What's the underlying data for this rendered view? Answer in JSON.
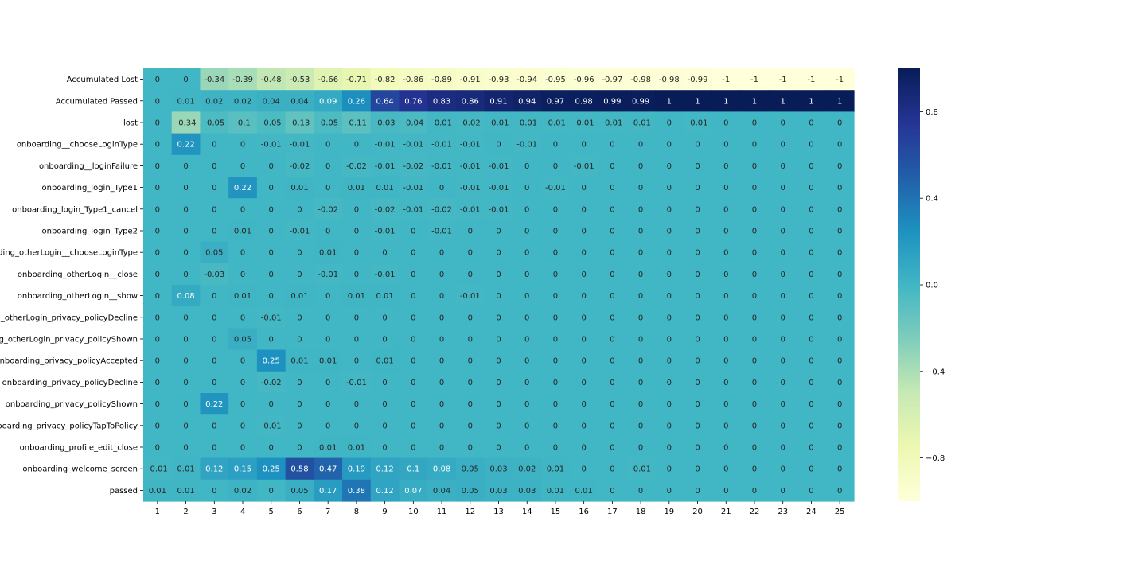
{
  "chart_data": {
    "type": "heatmap",
    "title": "",
    "xlabel": "",
    "ylabel": "",
    "x_categories": [
      "1",
      "2",
      "3",
      "4",
      "5",
      "6",
      "7",
      "8",
      "9",
      "10",
      "11",
      "12",
      "13",
      "14",
      "15",
      "16",
      "17",
      "18",
      "19",
      "20",
      "21",
      "22",
      "23",
      "24",
      "25"
    ],
    "y_categories": [
      "Accumulated Lost",
      "Accumulated Passed",
      "lost",
      "onboarding__chooseLoginType",
      "onboarding__loginFailure",
      "onboarding_login_Type1",
      "onboarding_login_Type1_cancel",
      "onboarding_login_Type2",
      "onboarding_otherLogin__chooseLoginType",
      "onboarding_otherLogin__close",
      "onboarding_otherLogin__show",
      "onboarding_otherLogin_privacy_policyDecline",
      "onboarding_otherLogin_privacy_policyShown",
      "onboarding_privacy_policyAccepted",
      "onboarding_privacy_policyDecline",
      "onboarding_privacy_policyShown",
      "onboarding_privacy_policyTapToPolicy",
      "onboarding_profile_edit_close",
      "onboarding_welcome_screen",
      "passed"
    ],
    "values": [
      [
        0,
        0,
        -0.34,
        -0.39,
        -0.48,
        -0.53,
        -0.66,
        -0.71,
        -0.82,
        -0.86,
        -0.89,
        -0.91,
        -0.93,
        -0.94,
        -0.95,
        -0.96,
        -0.97,
        -0.98,
        -0.98,
        -0.99,
        -1,
        -1,
        -1,
        -1,
        -1
      ],
      [
        0,
        0.01,
        0.02,
        0.02,
        0.04,
        0.04,
        0.09,
        0.26,
        0.64,
        0.76,
        0.83,
        0.86,
        0.91,
        0.94,
        0.97,
        0.98,
        0.99,
        0.99,
        1,
        1,
        1,
        1,
        1,
        1,
        1
      ],
      [
        0,
        -0.34,
        -0.05,
        -0.1,
        -0.05,
        -0.13,
        -0.05,
        -0.11,
        -0.03,
        -0.04,
        -0.01,
        -0.02,
        -0.01,
        -0.01,
        -0.01,
        -0.01,
        -0.01,
        -0.01,
        0,
        -0.01,
        0,
        0,
        0,
        0,
        0
      ],
      [
        0,
        0.22,
        0,
        0,
        -0.01,
        -0.01,
        0,
        0,
        -0.01,
        -0.01,
        -0.01,
        -0.01,
        0,
        -0.01,
        0,
        0,
        0,
        0,
        0,
        0,
        0,
        0,
        0,
        0,
        0
      ],
      [
        0,
        0,
        0,
        0,
        0,
        -0.02,
        0,
        -0.02,
        -0.01,
        -0.02,
        -0.01,
        -0.01,
        -0.01,
        0,
        0,
        -0.01,
        0,
        0,
        0,
        0,
        0,
        0,
        0,
        0,
        0
      ],
      [
        0,
        0,
        0,
        0.22,
        0,
        0.01,
        0,
        0.01,
        0.01,
        -0.01,
        0,
        -0.01,
        -0.01,
        0,
        -0.01,
        0,
        0,
        0,
        0,
        0,
        0,
        0,
        0,
        0,
        0
      ],
      [
        0,
        0,
        0,
        0,
        0,
        0,
        -0.02,
        0,
        -0.02,
        -0.01,
        -0.02,
        -0.01,
        -0.01,
        0,
        0,
        0,
        0,
        0,
        0,
        0,
        0,
        0,
        0,
        0,
        0
      ],
      [
        0,
        0,
        0,
        0.01,
        0,
        -0.01,
        0,
        0,
        -0.01,
        0,
        -0.01,
        0,
        0,
        0,
        0,
        0,
        0,
        0,
        0,
        0,
        0,
        0,
        0,
        0,
        0
      ],
      [
        0,
        0,
        0.05,
        0,
        0,
        0,
        0.01,
        0,
        0,
        0,
        0,
        0,
        0,
        0,
        0,
        0,
        0,
        0,
        0,
        0,
        0,
        0,
        0,
        0,
        0
      ],
      [
        0,
        0,
        -0.03,
        0,
        0,
        0,
        -0.01,
        0,
        -0.01,
        0,
        0,
        0,
        0,
        0,
        0,
        0,
        0,
        0,
        0,
        0,
        0,
        0,
        0,
        0,
        0
      ],
      [
        0,
        0.08,
        0,
        0.01,
        0,
        0.01,
        0,
        0.01,
        0.01,
        0,
        0,
        -0.01,
        0,
        0,
        0,
        0,
        0,
        0,
        0,
        0,
        0,
        0,
        0,
        0,
        0
      ],
      [
        0,
        0,
        0,
        0,
        -0.01,
        0,
        0,
        0,
        0,
        0,
        0,
        0,
        0,
        0,
        0,
        0,
        0,
        0,
        0,
        0,
        0,
        0,
        0,
        0,
        0
      ],
      [
        0,
        0,
        0,
        0.05,
        0,
        0,
        0,
        0,
        0,
        0,
        0,
        0,
        0,
        0,
        0,
        0,
        0,
        0,
        0,
        0,
        0,
        0,
        0,
        0,
        0
      ],
      [
        0,
        0,
        0,
        0,
        0.25,
        0.01,
        0.01,
        0,
        0.01,
        0,
        0,
        0,
        0,
        0,
        0,
        0,
        0,
        0,
        0,
        0,
        0,
        0,
        0,
        0,
        0
      ],
      [
        0,
        0,
        0,
        0,
        -0.02,
        0,
        0,
        -0.01,
        0,
        0,
        0,
        0,
        0,
        0,
        0,
        0,
        0,
        0,
        0,
        0,
        0,
        0,
        0,
        0,
        0
      ],
      [
        0,
        0,
        0.22,
        0,
        0,
        0,
        0,
        0,
        0,
        0,
        0,
        0,
        0,
        0,
        0,
        0,
        0,
        0,
        0,
        0,
        0,
        0,
        0,
        0,
        0
      ],
      [
        0,
        0,
        0,
        0,
        -0.01,
        0,
        0,
        0,
        0,
        0,
        0,
        0,
        0,
        0,
        0,
        0,
        0,
        0,
        0,
        0,
        0,
        0,
        0,
        0,
        0
      ],
      [
        0,
        0,
        0,
        0,
        0,
        0,
        0.01,
        0.01,
        0,
        0,
        0,
        0,
        0,
        0,
        0,
        0,
        0,
        0,
        0,
        0,
        0,
        0,
        0,
        0,
        0
      ],
      [
        -0.01,
        0.01,
        0.12,
        0.15,
        0.25,
        0.58,
        0.47,
        0.19,
        0.12,
        0.1,
        0.08,
        0.05,
        0.03,
        0.02,
        0.01,
        0,
        0,
        -0.01,
        0,
        0,
        0,
        0,
        0,
        0,
        0
      ],
      [
        0.01,
        0.01,
        0,
        0.02,
        0,
        0.05,
        0.17,
        0.38,
        0.12,
        0.07,
        0.04,
        0.05,
        0.03,
        0.03,
        0.01,
        0.01,
        0,
        0,
        0,
        0,
        0,
        0,
        0,
        0,
        0
      ]
    ],
    "colormap": "YlGnBu",
    "vmin": -1,
    "vmax": 1,
    "colorbar_ticks": [
      0.8,
      0.4,
      0.0,
      -0.4,
      -0.8
    ],
    "colorbar_tick_labels": [
      "0.8",
      "0.4",
      "0.0",
      "−0.4",
      "−0.8"
    ],
    "annotations": true,
    "grid": false,
    "legend": "colorbar-right"
  }
}
